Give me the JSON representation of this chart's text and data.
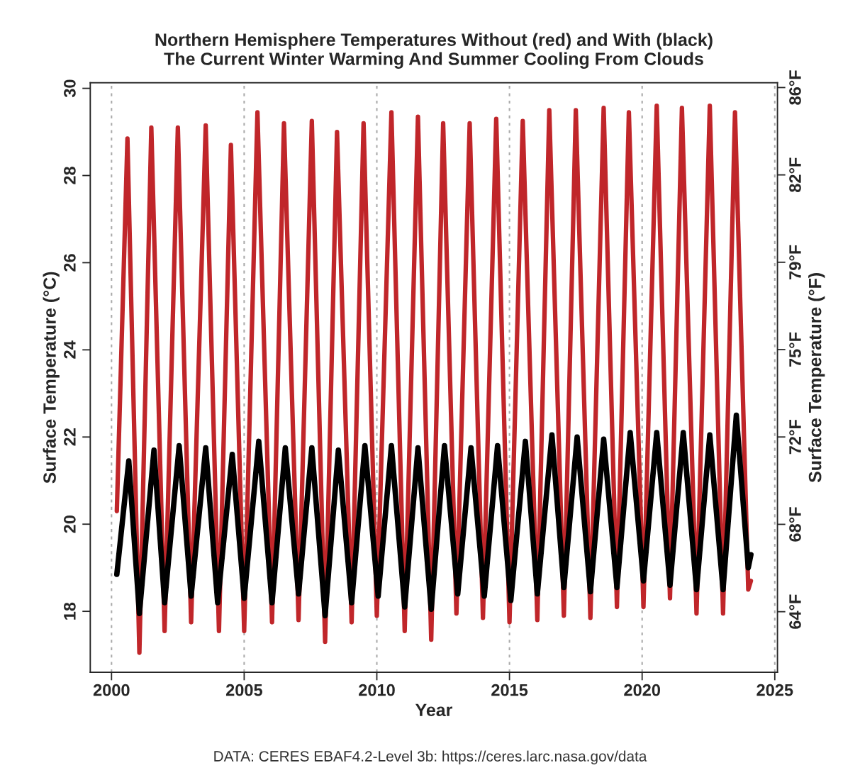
{
  "chart_data": {
    "type": "line",
    "title": "Northern Hemisphere Temperatures Without (red) and With (black)\nThe Current Winter Warming And Summer Cooling From Clouds",
    "xlabel": "Year",
    "ylabel": "Surface Temperature (°C)",
    "y2label": "Surface Temperature (°F)",
    "annotations": [
      "DATA: CERES EBAF4.2-Level 3b: https://ceres.larc.nasa.gov/data"
    ],
    "xlim": [
      1999.2,
      2025.1
    ],
    "xticks": [
      2000,
      2005,
      2010,
      2015,
      2020,
      2025
    ],
    "ylim": [
      16.6,
      30.13
    ],
    "yticks": [
      18,
      20,
      22,
      24,
      26,
      28,
      30
    ],
    "y2lim": [
      61.9,
      86.2
    ],
    "y2ticks": [
      {
        "value": 64.4,
        "label": "64°F"
      },
      {
        "value": 68,
        "label": "68°F"
      },
      {
        "value": 71.6,
        "label": "72°F"
      },
      {
        "value": 75.2,
        "label": "75°F"
      },
      {
        "value": 78.8,
        "label": "79°F"
      },
      {
        "value": 82.4,
        "label": "82°F"
      },
      {
        "value": 86,
        "label": "86°F"
      }
    ],
    "grid": "x",
    "line_style": "solid",
    "marker": "none",
    "series": [
      {
        "color": "#c0262a",
        "x": [
          2000.2,
          2000.6,
          2001.05,
          2001.5,
          2002.0,
          2002.5,
          2003.0,
          2003.55,
          2004.05,
          2004.5,
          2005.0,
          2005.5,
          2006.05,
          2006.5,
          2007.05,
          2007.55,
          2008.05,
          2008.5,
          2009.05,
          2009.5,
          2010.0,
          2010.55,
          2011.05,
          2011.55,
          2012.05,
          2012.5,
          2013.0,
          2013.5,
          2014.0,
          2014.5,
          2015.0,
          2015.5,
          2016.05,
          2016.5,
          2017.05,
          2017.5,
          2018.05,
          2018.55,
          2019.05,
          2019.5,
          2020.05,
          2020.55,
          2021.05,
          2021.5,
          2022.05,
          2022.55,
          2023.05,
          2023.5,
          2024.0,
          2024.1
        ],
        "values": [
          20.3,
          28.85,
          17.05,
          29.1,
          17.55,
          29.1,
          17.75,
          29.15,
          17.55,
          28.7,
          17.55,
          29.45,
          17.75,
          29.2,
          17.8,
          29.25,
          17.3,
          29.0,
          17.75,
          29.2,
          17.9,
          29.45,
          17.55,
          29.35,
          17.35,
          29.2,
          17.95,
          29.2,
          17.85,
          29.3,
          17.75,
          29.25,
          17.8,
          29.5,
          17.9,
          29.5,
          17.85,
          29.55,
          18.1,
          29.45,
          18.1,
          29.6,
          18.3,
          29.55,
          17.95,
          29.6,
          17.95,
          29.45,
          18.5,
          18.7
        ]
      },
      {
        "color": "#000000",
        "x": [
          2000.2,
          2000.65,
          2001.05,
          2001.6,
          2002.0,
          2002.55,
          2003.0,
          2003.55,
          2004.0,
          2004.55,
          2005.0,
          2005.55,
          2006.05,
          2006.55,
          2007.05,
          2007.55,
          2008.05,
          2008.55,
          2009.05,
          2009.55,
          2010.05,
          2010.55,
          2011.05,
          2011.55,
          2012.05,
          2012.55,
          2013.05,
          2013.55,
          2014.05,
          2014.55,
          2015.05,
          2015.6,
          2016.05,
          2016.6,
          2017.05,
          2017.55,
          2018.05,
          2018.55,
          2019.05,
          2019.55,
          2020.05,
          2020.55,
          2021.05,
          2021.55,
          2022.05,
          2022.55,
          2023.05,
          2023.55,
          2024.0,
          2024.1
        ],
        "values": [
          18.85,
          21.45,
          17.95,
          21.7,
          18.2,
          21.8,
          18.35,
          21.75,
          18.2,
          21.6,
          18.3,
          21.9,
          18.2,
          21.75,
          18.4,
          21.75,
          17.9,
          21.7,
          18.2,
          21.8,
          18.35,
          21.8,
          18.1,
          21.75,
          18.05,
          21.8,
          18.4,
          21.75,
          18.35,
          21.8,
          18.25,
          21.9,
          18.4,
          22.05,
          18.55,
          22.0,
          18.45,
          21.95,
          18.55,
          22.1,
          18.7,
          22.1,
          18.6,
          22.1,
          18.5,
          22.05,
          18.5,
          22.5,
          19.0,
          19.3
        ]
      }
    ]
  }
}
